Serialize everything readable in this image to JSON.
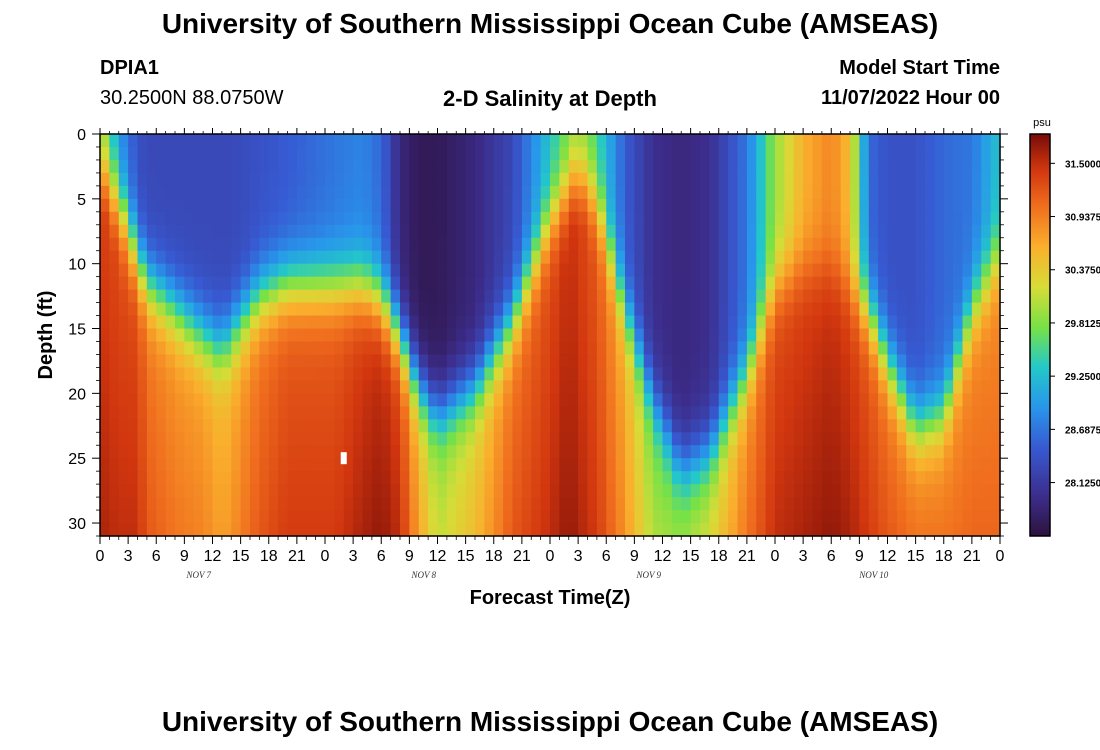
{
  "page": {
    "title": "University of Southern Mississippi Ocean Cube (AMSEAS)",
    "footer_title": "University of Southern Mississippi Ocean Cube (AMSEAS)"
  },
  "header": {
    "station_id": "DPIA1",
    "coords": "30.2500N  88.0750W",
    "plot_title": "2-D Salinity at Depth",
    "model_label": "Model Start Time",
    "model_start": "11/07/2022 Hour 00"
  },
  "chart_data": {
    "type": "heatmap",
    "title": "2-D Salinity at Depth",
    "xlabel": "Forecast Time(Z)",
    "ylabel": "Depth (ft)",
    "x_ticks": [
      "0",
      "3",
      "6",
      "9",
      "12",
      "15",
      "18",
      "21",
      "0",
      "3",
      "6",
      "9",
      "12",
      "15",
      "18",
      "21",
      "0",
      "3",
      "6",
      "9",
      "12",
      "15",
      "18",
      "21",
      "0",
      "3",
      "6",
      "9",
      "12",
      "15",
      "18",
      "21",
      "0"
    ],
    "x_range_hours": [
      0,
      96
    ],
    "y_ticks": [
      "0",
      "5",
      "10",
      "15",
      "20",
      "25",
      "30"
    ],
    "y_range_ft": [
      0,
      31
    ],
    "day_labels": [
      {
        "label": "NOV 7",
        "hour": 10
      },
      {
        "label": "NOV 8",
        "hour": 34
      },
      {
        "label": "NOV 9",
        "hour": 58
      },
      {
        "label": "NOV 10",
        "hour": 82
      }
    ],
    "colorbar": {
      "unit": "psu",
      "min": 27.56,
      "max": 31.81,
      "tick_labels": [
        "31.5000",
        "30.9375",
        "30.3750",
        "29.8125",
        "29.2500",
        "28.6875",
        "28.1250"
      ],
      "tick_values": [
        31.5,
        30.9375,
        30.375,
        29.8125,
        29.25,
        28.6875,
        28.125
      ]
    },
    "profile_hours": [
      0,
      2,
      4,
      5,
      8,
      11,
      13,
      14,
      17,
      20,
      25,
      28,
      30,
      32,
      34,
      36,
      40,
      44,
      48,
      50,
      51,
      53,
      56,
      59,
      62,
      65,
      69,
      72,
      75,
      78,
      80,
      82,
      84,
      87,
      90,
      93,
      96
    ],
    "halocline_depth_ft": [
      2.5,
      5,
      9.5,
      11.5,
      13.5,
      15.5,
      16.5,
      15.5,
      12.5,
      11.5,
      11.5,
      11.5,
      12.5,
      15.5,
      19.5,
      21.5,
      19.5,
      14.5,
      6.5,
      4,
      3,
      5,
      13.5,
      20.5,
      25.5,
      24.5,
      18.5,
      11.5,
      10,
      10,
      11.5,
      13.5,
      17.5,
      22.5,
      21.5,
      13.5,
      9
    ],
    "surface_psu": [
      29.9,
      28.9,
      28.4,
      28.3,
      28.3,
      28.3,
      28.3,
      28.3,
      28.4,
      28.5,
      28.7,
      28.8,
      28.6,
      27.9,
      27.7,
      27.7,
      27.9,
      28.3,
      29.3,
      29.7,
      29.8,
      29.5,
      28.5,
      28.0,
      27.9,
      28.0,
      28.7,
      29.9,
      30.6,
      30.9,
      30.5,
      28.6,
      28.4,
      28.4,
      28.6,
      28.7,
      29.3
    ],
    "bottom_psu": [
      31.6,
      31.5,
      31.5,
      31.2,
      31.0,
      30.9,
      30.7,
      30.8,
      31.2,
      31.4,
      31.4,
      31.6,
      31.7,
      31.5,
      30.7,
      30.1,
      30.5,
      31.2,
      31.5,
      31.7,
      31.6,
      31.4,
      30.8,
      30.0,
      29.9,
      30.2,
      31.0,
      31.5,
      31.6,
      31.7,
      31.6,
      31.4,
      31.2,
      31.0,
      31.0,
      31.1,
      31.1
    ],
    "gap_marker": {
      "hour": 26,
      "depth_ft": 25
    }
  }
}
